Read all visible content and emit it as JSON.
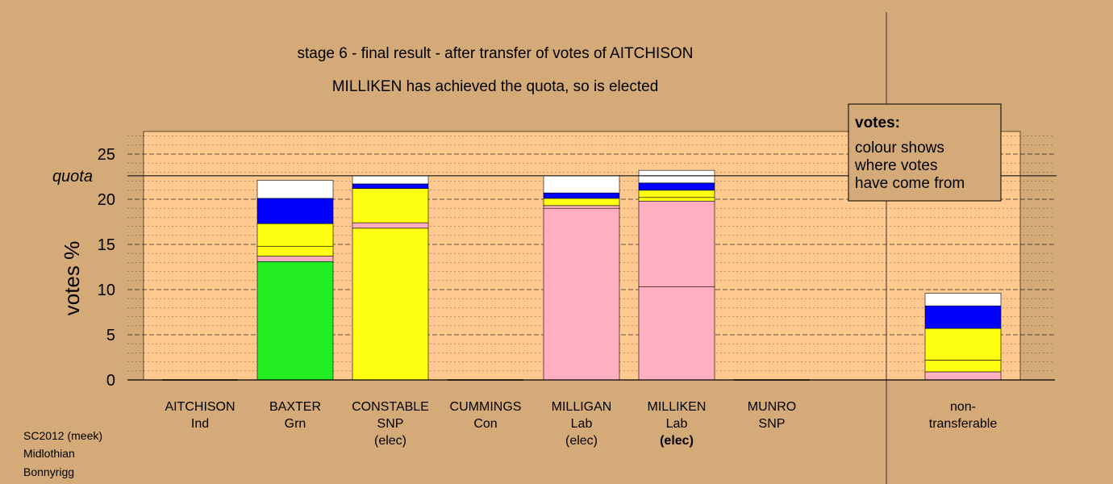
{
  "title": "stage 6 - final result - after transfer of votes of AITCHISON",
  "subtitle": "MILLIKEN has achieved the quota, so is elected",
  "quota_label": "quota",
  "legend": {
    "heading": "votes:",
    "lines": [
      "colour shows",
      "where votes",
      "have come from"
    ]
  },
  "footer": [
    "SC2012 (meek)",
    "Midlothian",
    "Bonnyrigg"
  ],
  "colors": {
    "background": "#d4aa78",
    "plot_area": "#ffc98f",
    "Grn": "#22ee22",
    "SNP": "#ffff11",
    "Lab": "#ffafc0",
    "Con": "#0000ff",
    "Ind": "#ffffff"
  },
  "chart_data": {
    "type": "bar",
    "stacked": true,
    "ylabel": "votes %",
    "ylim": [
      0,
      27.5
    ],
    "yticks": [
      0,
      5,
      10,
      15,
      20,
      25
    ],
    "quota": 22.6,
    "grid": true,
    "categories": [
      {
        "name": "AITCHISON",
        "party": "Ind",
        "status": ""
      },
      {
        "name": "BAXTER",
        "party": "Grn",
        "status": ""
      },
      {
        "name": "CONSTABLE",
        "party": "SNP",
        "status": "(elec)"
      },
      {
        "name": "CUMMINGS",
        "party": "Con",
        "status": ""
      },
      {
        "name": "MILLIGAN",
        "party": "Lab",
        "status": "(elec)"
      },
      {
        "name": "MILLIKEN",
        "party": "Lab",
        "status": "(elec)",
        "status_bold": true
      },
      {
        "name": "MUNRO",
        "party": "SNP",
        "status": ""
      },
      {
        "name": "non-",
        "party": "transferable",
        "status": "",
        "separated": true
      }
    ],
    "stacks": [
      [],
      [
        {
          "source": "Grn",
          "value": 13.1
        },
        {
          "source": "Lab",
          "value": 0.6
        },
        {
          "source": "SNP",
          "value": 1.1
        },
        {
          "source": "SNP",
          "value": 2.5
        },
        {
          "source": "Con",
          "value": 2.8
        },
        {
          "source": "Ind",
          "value": 2.0
        }
      ],
      [
        {
          "source": "SNP",
          "value": 16.8
        },
        {
          "source": "Lab",
          "value": 0.6
        },
        {
          "source": "SNP",
          "value": 3.8
        },
        {
          "source": "Con",
          "value": 0.5
        },
        {
          "source": "Ind",
          "value": 0.9
        }
      ],
      [],
      [
        {
          "source": "Lab",
          "value": 19.0
        },
        {
          "source": "Lab",
          "value": 0.3
        },
        {
          "source": "SNP",
          "value": 0.8
        },
        {
          "source": "Con",
          "value": 0.6
        },
        {
          "source": "Ind",
          "value": 1.9
        }
      ],
      [
        {
          "source": "Lab",
          "value": 10.3
        },
        {
          "source": "Lab",
          "value": 9.5
        },
        {
          "source": "SNP",
          "value": 0.4
        },
        {
          "source": "SNP",
          "value": 0.8
        },
        {
          "source": "Con",
          "value": 0.8
        },
        {
          "source": "Ind",
          "value": 1.4
        }
      ],
      [],
      [
        {
          "source": "Lab",
          "value": 0.9
        },
        {
          "source": "SNP",
          "value": 1.3
        },
        {
          "source": "SNP",
          "value": 3.5
        },
        {
          "source": "Con",
          "value": 2.5
        },
        {
          "source": "Ind",
          "value": 1.4
        }
      ]
    ]
  }
}
